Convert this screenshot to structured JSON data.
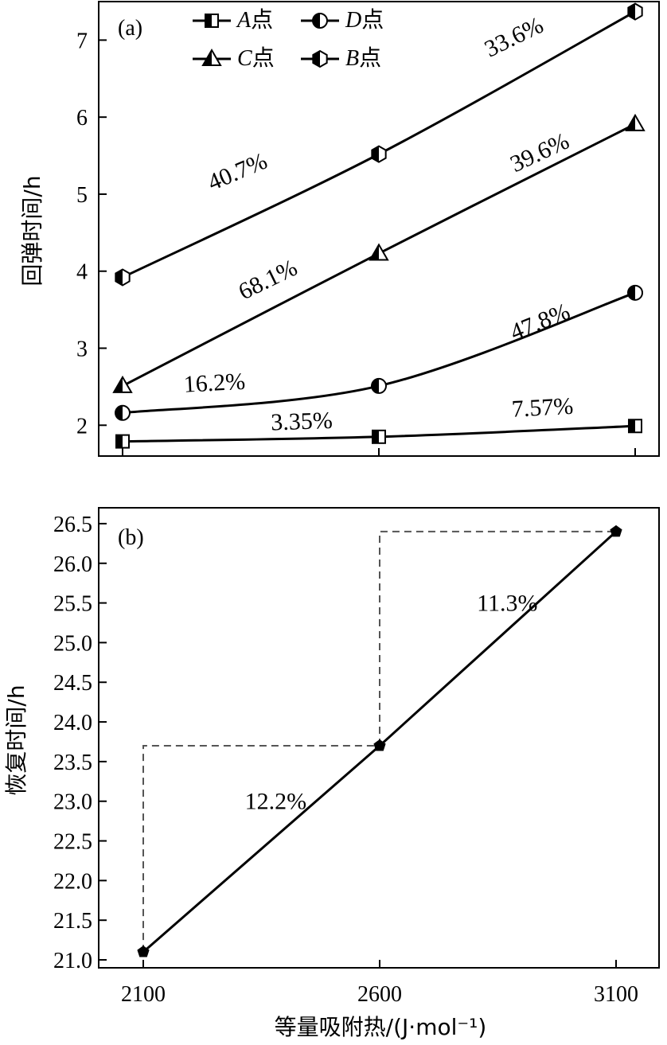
{
  "chart_data": [
    {
      "type": "line",
      "panel_label": "(a)",
      "ylabel": "回弹时间/h",
      "x": [
        2100,
        2600,
        3100
      ],
      "ylim": [
        1.6,
        7.5
      ],
      "yticks": [
        2,
        3,
        4,
        5,
        6,
        7
      ],
      "series": [
        {
          "name": "A点",
          "marker": "square-half",
          "values": [
            1.79,
            1.85,
            1.99
          ]
        },
        {
          "name": "D点",
          "marker": "circle-half",
          "values": [
            2.16,
            2.51,
            3.72
          ]
        },
        {
          "name": "C点",
          "marker": "triangle-half",
          "values": [
            2.51,
            4.23,
            5.91
          ]
        },
        {
          "name": "B点",
          "marker": "hexagon-half",
          "values": [
            3.92,
            5.52,
            7.37
          ]
        }
      ],
      "annotations": [
        {
          "text": "3.35%",
          "x": 2450,
          "y": 1.95,
          "angle": -2
        },
        {
          "text": "7.57%",
          "x": 2920,
          "y": 2.13,
          "angle": -3
        },
        {
          "text": "16.2%",
          "x": 2280,
          "y": 2.45,
          "angle": -3
        },
        {
          "text": "47.8%",
          "x": 2920,
          "y": 3.25,
          "angle": -22
        },
        {
          "text": "68.1%",
          "x": 2390,
          "y": 3.8,
          "angle": -26
        },
        {
          "text": "39.6%",
          "x": 2920,
          "y": 5.45,
          "angle": -25
        },
        {
          "text": "40.7%",
          "x": 2330,
          "y": 5.2,
          "angle": -23
        },
        {
          "text": "33.6%",
          "x": 2870,
          "y": 6.95,
          "angle": -26
        }
      ]
    },
    {
      "type": "line",
      "panel_label": "(b)",
      "ylabel": "恢复时间/h",
      "xlabel": "等量吸附热/(J·mol⁻¹)",
      "x": [
        2100,
        2600,
        3100
      ],
      "xticks": [
        2100,
        2600,
        3100
      ],
      "ylim": [
        20.9,
        26.7
      ],
      "yticks": [
        "21.0",
        "21.5",
        "22.0",
        "22.5",
        "23.0",
        "23.5",
        "24.0",
        "24.5",
        "25.0",
        "25.5",
        "26.0",
        "26.5"
      ],
      "series": [
        {
          "values": [
            21.1,
            23.7,
            26.4
          ]
        }
      ],
      "annotations": [
        {
          "text": "12.2%",
          "x": 2380,
          "y": 22.9
        },
        {
          "text": "11.3%",
          "x": 2870,
          "y": 25.4
        }
      ]
    }
  ]
}
